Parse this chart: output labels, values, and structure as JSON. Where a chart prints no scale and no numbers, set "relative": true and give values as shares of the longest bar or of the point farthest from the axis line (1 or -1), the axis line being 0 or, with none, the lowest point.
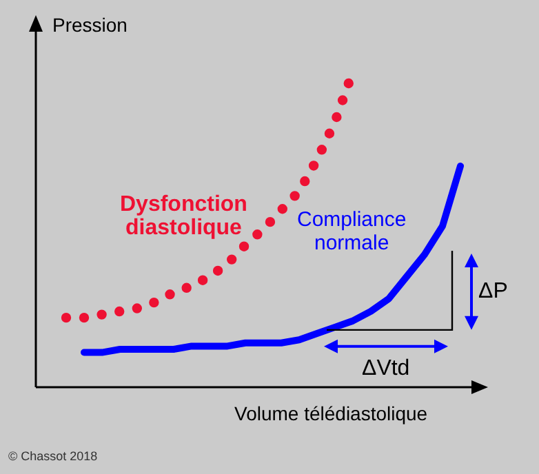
{
  "chart_data": {
    "type": "line",
    "relative": true,
    "xlabel": "Volume télédiastolique",
    "ylabel": "Pression",
    "tick_labels": false,
    "legend": false,
    "categories": [
      null,
      null,
      null,
      null,
      null,
      null,
      null,
      null,
      null,
      null,
      null,
      null,
      null,
      null,
      null,
      null,
      null,
      null,
      null,
      null,
      null,
      null,
      null
    ],
    "series": [
      {
        "name": "Dysfonction diastolique",
        "line_style": "dotted",
        "color": "#ee1133",
        "values": [
          0.22,
          0.22,
          0.23,
          0.24,
          0.25,
          0.27,
          0.3,
          0.32,
          0.35,
          0.39,
          0.45,
          0.5,
          0.56,
          0.62,
          0.72,
          0.84,
          1,
          null,
          null,
          null,
          null,
          null,
          null
        ]
      },
      {
        "name": "Compliance normale",
        "line_style": "solid",
        "color": "#0000ff",
        "values": [
          null,
          0.11,
          0.11,
          0.12,
          0.12,
          0.12,
          0.12,
          0.13,
          0.13,
          0.13,
          0.14,
          0.14,
          0.14,
          0.15,
          0.17,
          0.19,
          0.21,
          0.24,
          0.28,
          0.35,
          0.42,
          0.51,
          0.7
        ]
      }
    ],
    "annotations": [
      "ΔP",
      "ΔVtd",
      "© Chassot 2018"
    ]
  }
}
